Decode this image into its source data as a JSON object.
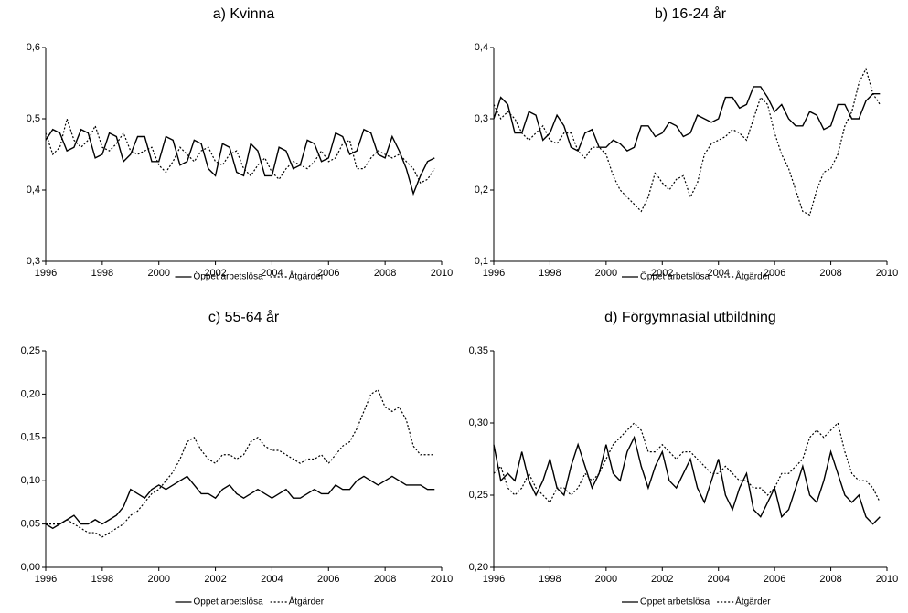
{
  "chart_data": [
    {
      "type": "line",
      "title": "a) Kvinna",
      "x": [
        1996,
        1996.25,
        1996.5,
        1996.75,
        1997,
        1997.25,
        1997.5,
        1997.75,
        1998,
        1998.25,
        1998.5,
        1998.75,
        1999,
        1999.25,
        1999.5,
        1999.75,
        2000,
        2000.25,
        2000.5,
        2000.75,
        2001,
        2001.25,
        2001.5,
        2001.75,
        2002,
        2002.25,
        2002.5,
        2002.75,
        2003,
        2003.25,
        2003.5,
        2003.75,
        2004,
        2004.25,
        2004.5,
        2004.75,
        2005,
        2005.25,
        2005.5,
        2005.75,
        2006,
        2006.25,
        2006.5,
        2006.75,
        2007,
        2007.25,
        2007.5,
        2007.75,
        2008,
        2008.25,
        2008.5,
        2008.75,
        2009,
        2009.25,
        2009.5,
        2009.75
      ],
      "xlim": [
        1996,
        2010
      ],
      "xticks": [
        1996,
        1998,
        2000,
        2002,
        2004,
        2006,
        2008,
        2010
      ],
      "ylim": [
        0.3,
        0.6
      ],
      "yticks": [
        {
          "value": 0.3,
          "label": "0,3"
        },
        {
          "value": 0.4,
          "label": "0,4"
        },
        {
          "value": 0.5,
          "label": "0,5"
        },
        {
          "value": 0.6,
          "label": "0,6"
        }
      ],
      "series": [
        {
          "name": "Öppet arbetslösa",
          "color": "#000000",
          "style": "solid",
          "values": [
            0.47,
            0.485,
            0.48,
            0.455,
            0.46,
            0.485,
            0.48,
            0.445,
            0.45,
            0.48,
            0.475,
            0.44,
            0.45,
            0.475,
            0.475,
            0.44,
            0.44,
            0.475,
            0.47,
            0.435,
            0.44,
            0.47,
            0.465,
            0.43,
            0.42,
            0.465,
            0.46,
            0.425,
            0.42,
            0.465,
            0.455,
            0.42,
            0.42,
            0.46,
            0.455,
            0.43,
            0.435,
            0.47,
            0.465,
            0.44,
            0.445,
            0.48,
            0.475,
            0.45,
            0.455,
            0.485,
            0.48,
            0.45,
            0.445,
            0.475,
            0.455,
            0.43,
            0.395,
            0.42,
            0.44,
            0.445
          ]
        },
        {
          "name": "Åtgärder",
          "color": "#000000",
          "style": "dashed",
          "values": [
            0.48,
            0.45,
            0.46,
            0.5,
            0.47,
            0.46,
            0.47,
            0.49,
            0.46,
            0.455,
            0.465,
            0.48,
            0.455,
            0.45,
            0.455,
            0.46,
            0.435,
            0.425,
            0.44,
            0.46,
            0.45,
            0.44,
            0.455,
            0.46,
            0.44,
            0.435,
            0.45,
            0.455,
            0.43,
            0.42,
            0.435,
            0.445,
            0.425,
            0.415,
            0.43,
            0.44,
            0.435,
            0.43,
            0.44,
            0.455,
            0.44,
            0.445,
            0.465,
            0.47,
            0.43,
            0.43,
            0.445,
            0.455,
            0.45,
            0.445,
            0.45,
            0.44,
            0.43,
            0.41,
            0.415,
            0.43
          ]
        }
      ]
    },
    {
      "type": "line",
      "title": "b) 16-24 år",
      "x": [
        1996,
        1996.25,
        1996.5,
        1996.75,
        1997,
        1997.25,
        1997.5,
        1997.75,
        1998,
        1998.25,
        1998.5,
        1998.75,
        1999,
        1999.25,
        1999.5,
        1999.75,
        2000,
        2000.25,
        2000.5,
        2000.75,
        2001,
        2001.25,
        2001.5,
        2001.75,
        2002,
        2002.25,
        2002.5,
        2002.75,
        2003,
        2003.25,
        2003.5,
        2003.75,
        2004,
        2004.25,
        2004.5,
        2004.75,
        2005,
        2005.25,
        2005.5,
        2005.75,
        2006,
        2006.25,
        2006.5,
        2006.75,
        2007,
        2007.25,
        2007.5,
        2007.75,
        2008,
        2008.25,
        2008.5,
        2008.75,
        2009,
        2009.25,
        2009.5,
        2009.75
      ],
      "xlim": [
        1996,
        2010
      ],
      "xticks": [
        1996,
        1998,
        2000,
        2002,
        2004,
        2006,
        2008,
        2010
      ],
      "ylim": [
        0.1,
        0.4
      ],
      "yticks": [
        {
          "value": 0.1,
          "label": "0,1"
        },
        {
          "value": 0.2,
          "label": "0,2"
        },
        {
          "value": 0.3,
          "label": "0,3"
        },
        {
          "value": 0.4,
          "label": "0,4"
        }
      ],
      "series": [
        {
          "name": "Öppet arbetslösa",
          "color": "#000000",
          "style": "solid",
          "values": [
            0.3,
            0.33,
            0.32,
            0.28,
            0.28,
            0.31,
            0.305,
            0.27,
            0.28,
            0.305,
            0.29,
            0.26,
            0.255,
            0.28,
            0.285,
            0.26,
            0.26,
            0.27,
            0.265,
            0.255,
            0.26,
            0.29,
            0.29,
            0.275,
            0.28,
            0.295,
            0.29,
            0.275,
            0.28,
            0.305,
            0.3,
            0.295,
            0.3,
            0.33,
            0.33,
            0.315,
            0.32,
            0.345,
            0.345,
            0.33,
            0.31,
            0.32,
            0.3,
            0.29,
            0.29,
            0.31,
            0.305,
            0.285,
            0.29,
            0.32,
            0.32,
            0.3,
            0.3,
            0.325,
            0.335,
            0.335
          ]
        },
        {
          "name": "Åtgärder",
          "color": "#000000",
          "style": "dashed",
          "values": [
            0.32,
            0.3,
            0.31,
            0.3,
            0.28,
            0.27,
            0.28,
            0.29,
            0.27,
            0.265,
            0.28,
            0.28,
            0.255,
            0.245,
            0.26,
            0.26,
            0.25,
            0.22,
            0.2,
            0.19,
            0.18,
            0.17,
            0.19,
            0.225,
            0.21,
            0.2,
            0.215,
            0.22,
            0.19,
            0.21,
            0.25,
            0.265,
            0.27,
            0.275,
            0.285,
            0.28,
            0.27,
            0.3,
            0.33,
            0.32,
            0.28,
            0.25,
            0.23,
            0.2,
            0.17,
            0.165,
            0.2,
            0.225,
            0.23,
            0.25,
            0.29,
            0.31,
            0.35,
            0.37,
            0.335,
            0.32
          ]
        }
      ]
    },
    {
      "type": "line",
      "title": "c) 55-64 år",
      "x": [
        1996,
        1996.25,
        1996.5,
        1996.75,
        1997,
        1997.25,
        1997.5,
        1997.75,
        1998,
        1998.25,
        1998.5,
        1998.75,
        1999,
        1999.25,
        1999.5,
        1999.75,
        2000,
        2000.25,
        2000.5,
        2000.75,
        2001,
        2001.25,
        2001.5,
        2001.75,
        2002,
        2002.25,
        2002.5,
        2002.75,
        2003,
        2003.25,
        2003.5,
        2003.75,
        2004,
        2004.25,
        2004.5,
        2004.75,
        2005,
        2005.25,
        2005.5,
        2005.75,
        2006,
        2006.25,
        2006.5,
        2006.75,
        2007,
        2007.25,
        2007.5,
        2007.75,
        2008,
        2008.25,
        2008.5,
        2008.75,
        2009,
        2009.25,
        2009.5,
        2009.75
      ],
      "xlim": [
        1996,
        2010
      ],
      "xticks": [
        1996,
        1998,
        2000,
        2002,
        2004,
        2006,
        2008,
        2010
      ],
      "ylim": [
        0,
        0.25
      ],
      "yticks": [
        {
          "value": 0,
          "label": "0,00"
        },
        {
          "value": 0.05,
          "label": "0,05"
        },
        {
          "value": 0.1,
          "label": "0,10"
        },
        {
          "value": 0.15,
          "label": "0,15"
        },
        {
          "value": 0.2,
          "label": "0,20"
        },
        {
          "value": 0.25,
          "label": "0,25"
        }
      ],
      "series": [
        {
          "name": "Öppet arbetslösa",
          "color": "#000000",
          "style": "solid",
          "values": [
            0.05,
            0.045,
            0.05,
            0.055,
            0.06,
            0.05,
            0.05,
            0.055,
            0.05,
            0.055,
            0.06,
            0.07,
            0.09,
            0.085,
            0.08,
            0.09,
            0.095,
            0.09,
            0.095,
            0.1,
            0.105,
            0.095,
            0.085,
            0.085,
            0.08,
            0.09,
            0.095,
            0.085,
            0.08,
            0.085,
            0.09,
            0.085,
            0.08,
            0.085,
            0.09,
            0.08,
            0.08,
            0.085,
            0.09,
            0.085,
            0.085,
            0.095,
            0.09,
            0.09,
            0.1,
            0.105,
            0.1,
            0.095,
            0.1,
            0.105,
            0.1,
            0.095,
            0.095,
            0.095,
            0.09,
            0.09
          ]
        },
        {
          "name": "Åtgärder",
          "color": "#000000",
          "style": "dashed",
          "values": [
            0.05,
            0.05,
            0.05,
            0.055,
            0.05,
            0.045,
            0.04,
            0.04,
            0.035,
            0.04,
            0.045,
            0.05,
            0.06,
            0.065,
            0.075,
            0.085,
            0.09,
            0.1,
            0.11,
            0.125,
            0.145,
            0.15,
            0.135,
            0.125,
            0.12,
            0.13,
            0.13,
            0.125,
            0.13,
            0.145,
            0.15,
            0.14,
            0.135,
            0.135,
            0.13,
            0.125,
            0.12,
            0.125,
            0.125,
            0.13,
            0.12,
            0.13,
            0.14,
            0.145,
            0.16,
            0.18,
            0.2,
            0.205,
            0.185,
            0.18,
            0.185,
            0.17,
            0.14,
            0.13,
            0.13,
            0.13
          ]
        }
      ]
    },
    {
      "type": "line",
      "title": "d) Förgymnasial utbildning",
      "x": [
        1996,
        1996.25,
        1996.5,
        1996.75,
        1997,
        1997.25,
        1997.5,
        1997.75,
        1998,
        1998.25,
        1998.5,
        1998.75,
        1999,
        1999.25,
        1999.5,
        1999.75,
        2000,
        2000.25,
        2000.5,
        2000.75,
        2001,
        2001.25,
        2001.5,
        2001.75,
        2002,
        2002.25,
        2002.5,
        2002.75,
        2003,
        2003.25,
        2003.5,
        2003.75,
        2004,
        2004.25,
        2004.5,
        2004.75,
        2005,
        2005.25,
        2005.5,
        2005.75,
        2006,
        2006.25,
        2006.5,
        2006.75,
        2007,
        2007.25,
        2007.5,
        2007.75,
        2008,
        2008.25,
        2008.5,
        2008.75,
        2009,
        2009.25,
        2009.5,
        2009.75
      ],
      "xlim": [
        1996,
        2010
      ],
      "xticks": [
        1996,
        1998,
        2000,
        2002,
        2004,
        2006,
        2008,
        2010
      ],
      "ylim": [
        0.2,
        0.35
      ],
      "yticks": [
        {
          "value": 0.2,
          "label": "0,20"
        },
        {
          "value": 0.25,
          "label": "0,25"
        },
        {
          "value": 0.3,
          "label": "0,30"
        },
        {
          "value": 0.35,
          "label": "0,35"
        }
      ],
      "series": [
        {
          "name": "Öppet arbetslösa",
          "color": "#000000",
          "style": "solid",
          "values": [
            0.285,
            0.26,
            0.265,
            0.26,
            0.28,
            0.26,
            0.25,
            0.26,
            0.275,
            0.255,
            0.25,
            0.27,
            0.285,
            0.27,
            0.255,
            0.265,
            0.285,
            0.265,
            0.26,
            0.28,
            0.29,
            0.27,
            0.255,
            0.27,
            0.28,
            0.26,
            0.255,
            0.265,
            0.275,
            0.255,
            0.245,
            0.26,
            0.275,
            0.25,
            0.24,
            0.255,
            0.265,
            0.24,
            0.235,
            0.245,
            0.255,
            0.235,
            0.24,
            0.255,
            0.27,
            0.25,
            0.245,
            0.26,
            0.28,
            0.265,
            0.25,
            0.245,
            0.25,
            0.235,
            0.23,
            0.235
          ]
        },
        {
          "name": "Åtgärder",
          "color": "#000000",
          "style": "dashed",
          "values": [
            0.265,
            0.27,
            0.255,
            0.25,
            0.255,
            0.265,
            0.255,
            0.25,
            0.245,
            0.255,
            0.255,
            0.25,
            0.255,
            0.265,
            0.26,
            0.265,
            0.275,
            0.285,
            0.29,
            0.295,
            0.3,
            0.295,
            0.28,
            0.28,
            0.285,
            0.28,
            0.275,
            0.28,
            0.28,
            0.275,
            0.27,
            0.265,
            0.265,
            0.27,
            0.265,
            0.26,
            0.26,
            0.255,
            0.255,
            0.25,
            0.255,
            0.265,
            0.265,
            0.27,
            0.275,
            0.29,
            0.295,
            0.29,
            0.295,
            0.3,
            0.28,
            0.265,
            0.26,
            0.26,
            0.255,
            0.245
          ]
        }
      ]
    }
  ]
}
